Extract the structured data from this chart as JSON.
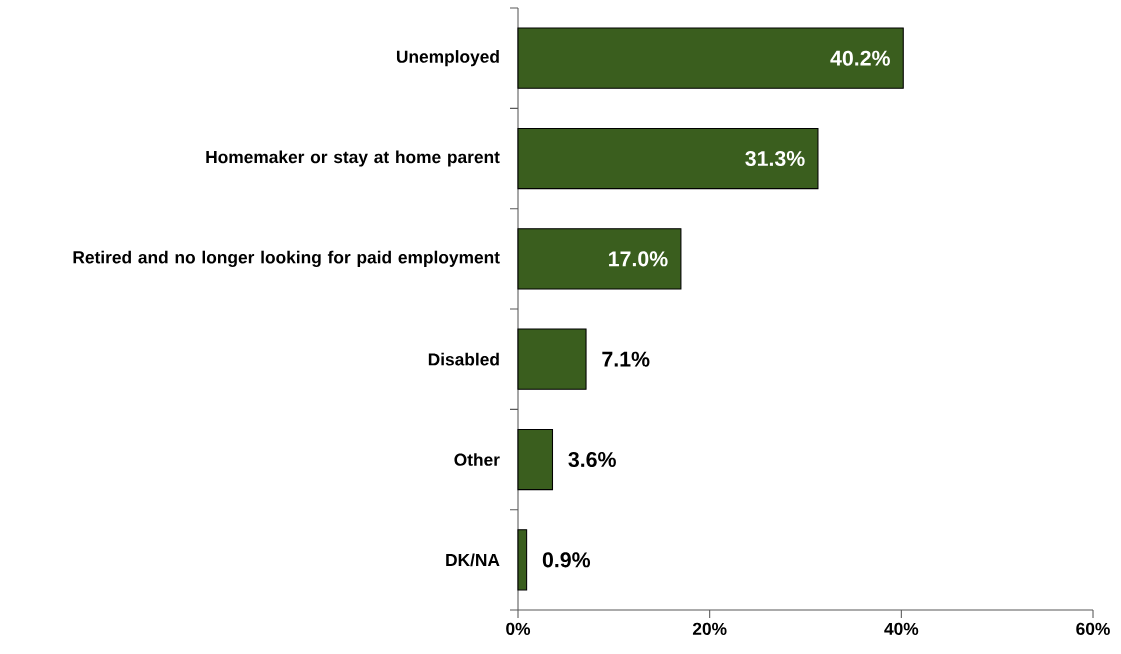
{
  "chart_data": {
    "type": "bar",
    "orientation": "horizontal",
    "categories": [
      "Unemployed",
      "Homemaker or stay at home parent",
      "Retired and no longer looking for paid employment",
      "Disabled",
      "Other",
      "DK/NA"
    ],
    "values": [
      40.2,
      31.3,
      17.0,
      7.1,
      3.6,
      0.9
    ],
    "value_labels": [
      "40.2%",
      "31.3%",
      "17.0%",
      "7.1%",
      "3.6%",
      "0.9%"
    ],
    "color": "#3a5e1e",
    "xlim": [
      0,
      60
    ],
    "xticks": [
      {
        "value": 0,
        "label": "0%"
      },
      {
        "value": 20,
        "label": "20%"
      },
      {
        "value": 40,
        "label": "40%"
      },
      {
        "value": 60,
        "label": "60%"
      }
    ]
  }
}
